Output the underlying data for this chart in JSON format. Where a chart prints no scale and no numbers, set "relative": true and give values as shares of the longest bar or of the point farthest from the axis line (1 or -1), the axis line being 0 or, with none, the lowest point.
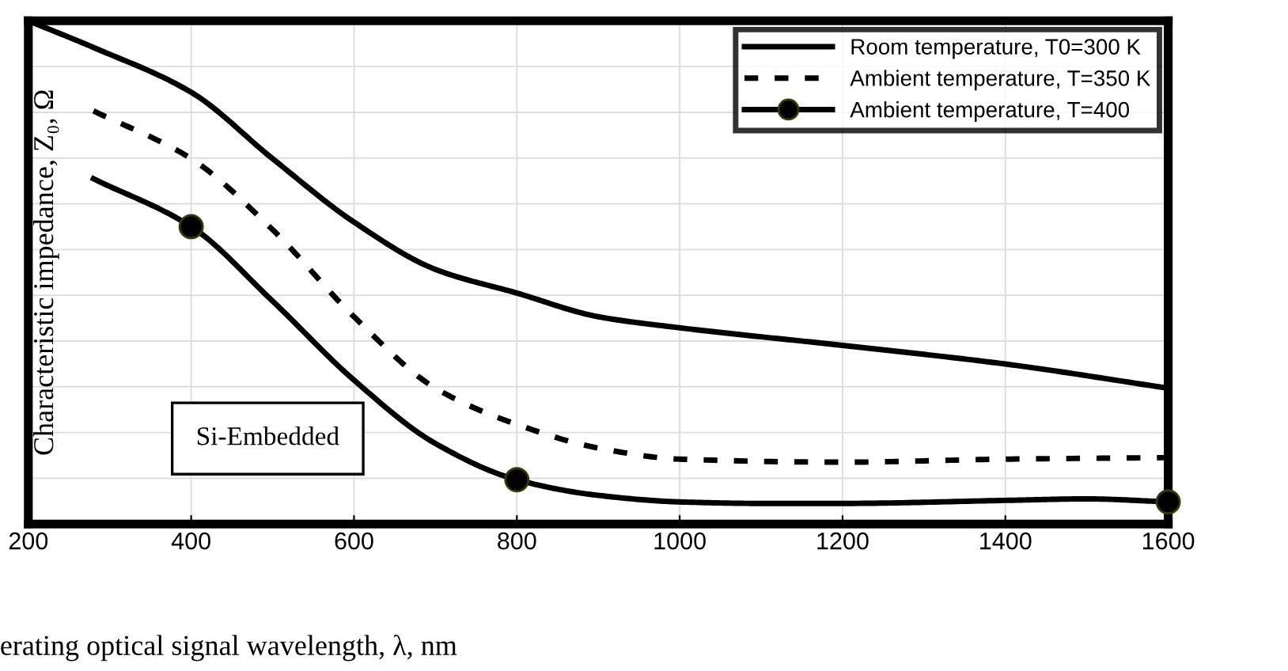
{
  "chart_data": {
    "type": "line",
    "relative": true,
    "xlabel": "erating optical signal wavelength, λ, nm",
    "ylabel": "Characteristic impedance, Z₀, Ω",
    "annotations": [
      "Si-Embedded"
    ],
    "xlim": [
      200,
      1600
    ],
    "xticks": [
      200,
      400,
      600,
      800,
      1000,
      1200,
      1400,
      1600
    ],
    "grid": true,
    "legend": "top right",
    "tick_labels": "x",
    "series": [
      {
        "name": "Room temperature, T0=300 K",
        "color": "#000000",
        "line_style": "solid",
        "x": [
          200,
          280,
          400,
          500,
          600,
          700,
          800,
          900,
          1000,
          1200,
          1400,
          1600
        ],
        "values": [
          1.0,
          0.947,
          0.858,
          0.726,
          0.6,
          0.506,
          0.459,
          0.412,
          0.39,
          0.355,
          0.318,
          0.27
        ]
      },
      {
        "name": "Ambient temperature, T=350 K",
        "color": "#000000",
        "line_style": "dashed",
        "x": [
          280,
          400,
          500,
          600,
          700,
          800,
          900,
          1000,
          1200,
          1400,
          1600
        ],
        "values": [
          0.821,
          0.726,
          0.585,
          0.412,
          0.27,
          0.198,
          0.151,
          0.129,
          0.123,
          0.129,
          0.132
        ]
      },
      {
        "name": "Ambient temperature, T=400",
        "color": "#000000",
        "line_style": "solid",
        "x": [
          280,
          400,
          500,
          600,
          700,
          800,
          900,
          1000,
          1100,
          1200,
          1400,
          1500,
          1600
        ],
        "values": [
          0.686,
          0.591,
          0.443,
          0.286,
          0.16,
          0.088,
          0.057,
          0.044,
          0.041,
          0.041,
          0.047,
          0.05,
          0.044
        ]
      },
      {
        "type": "scatter",
        "color": "#000000",
        "marker": "circle",
        "x": [
          400,
          800,
          1600
        ],
        "values": [
          0.591,
          0.088,
          0.044
        ]
      }
    ]
  }
}
